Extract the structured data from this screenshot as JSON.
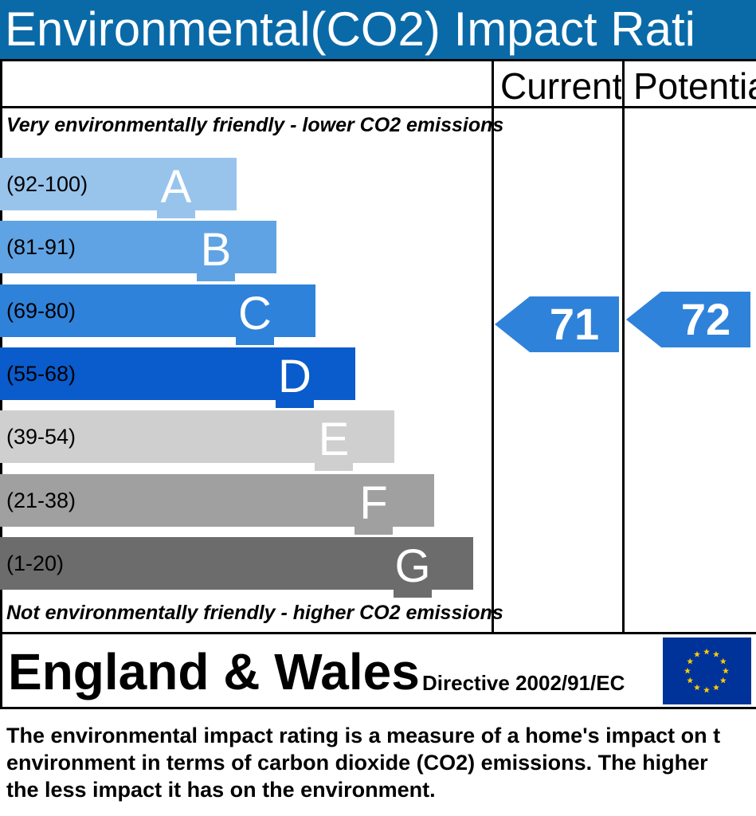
{
  "title": "Environmental(CO2) Impact Rati",
  "columns": {
    "current": "Current",
    "potential": "Potentia"
  },
  "top_caption": "Very environmentally friendly - lower CO2 emissions",
  "bottom_caption": "Not environmentally friendly - higher CO2 emissions",
  "chart_data": {
    "type": "bar",
    "bands": [
      {
        "letter": "A",
        "range": "(92-100)",
        "color": "#98c4ec"
      },
      {
        "letter": "B",
        "range": "(81-91)",
        "color": "#60a3e4"
      },
      {
        "letter": "C",
        "range": "(69-80)",
        "color": "#2f82da"
      },
      {
        "letter": "D",
        "range": "(55-68)",
        "color": "#0a5bcb"
      },
      {
        "letter": "E",
        "range": "(39-54)",
        "color": "#cfcfcf"
      },
      {
        "letter": "F",
        "range": "(21-38)",
        "color": "#a0a0a0"
      },
      {
        "letter": "G",
        "range": "(1-20)",
        "color": "#6c6c6c"
      }
    ],
    "current": {
      "value": 71,
      "band": "C",
      "color": "#2f82da"
    },
    "potential": {
      "value": 72,
      "band": "C",
      "color": "#2f82da"
    }
  },
  "footer": {
    "region": "England & Wales",
    "directive": "Directive 2002/91/EC",
    "flag_colors": {
      "field": "#003399",
      "stars": "#ffcc00"
    }
  },
  "description": [
    "The environmental impact rating is a measure of a home's impact on t",
    "environment in terms of carbon dioxide (CO2) emissions. The higher",
    "the less impact it has on the environment."
  ]
}
